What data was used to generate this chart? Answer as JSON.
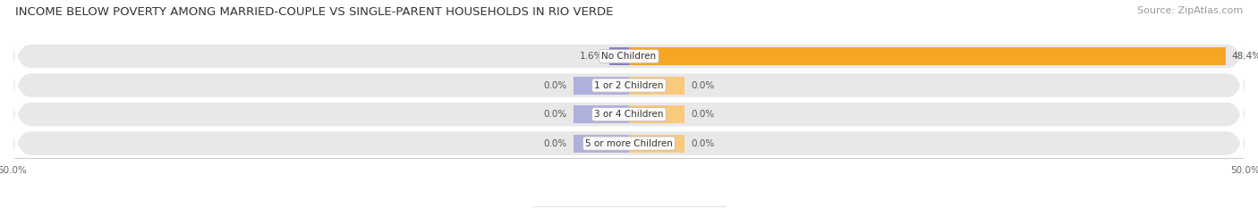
{
  "title": "INCOME BELOW POVERTY AMONG MARRIED-COUPLE VS SINGLE-PARENT HOUSEHOLDS IN RIO VERDE",
  "source": "Source: ZipAtlas.com",
  "categories": [
    "No Children",
    "1 or 2 Children",
    "3 or 4 Children",
    "5 or more Children"
  ],
  "married_values": [
    1.6,
    0.0,
    0.0,
    0.0
  ],
  "single_values": [
    48.4,
    0.0,
    0.0,
    0.0
  ],
  "married_color": "#8080c0",
  "single_color": "#f5a623",
  "married_zero_color": "#b0b0dd",
  "single_zero_color": "#f9c97c",
  "row_bg_color": "#e8e8e8",
  "row_alt_bg_color": "#ebebeb",
  "x_min": -50.0,
  "x_max": 50.0,
  "x_tick_labels": [
    "50.0%",
    "50.0%"
  ],
  "title_fontsize": 9.5,
  "source_fontsize": 8,
  "label_fontsize": 7.5,
  "cat_fontsize": 7.5,
  "bar_height": 0.62,
  "zero_bar_width": 4.5,
  "figsize": [
    14.06,
    2.33
  ],
  "dpi": 100
}
